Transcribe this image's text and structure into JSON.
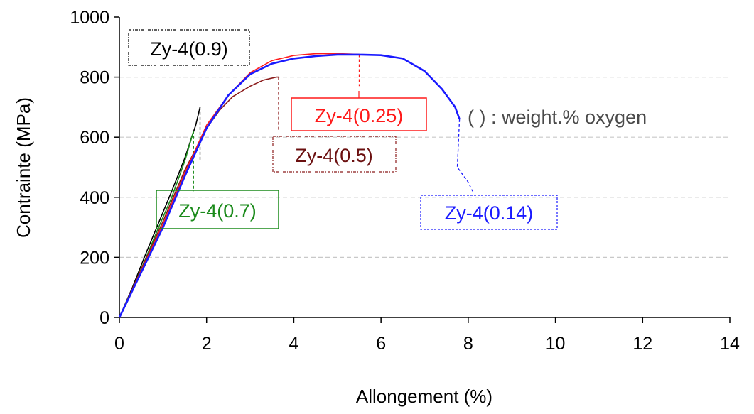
{
  "chart_data": {
    "type": "line",
    "title": "",
    "xlabel": "Allongement (%)",
    "ylabel": "Contrainte (MPa)",
    "xlim": [
      0,
      14
    ],
    "ylim": [
      0,
      1000
    ],
    "xticks": [
      "0",
      "2",
      "4",
      "6",
      "8",
      "10",
      "12",
      "14"
    ],
    "yticks": [
      "0",
      "200",
      "400",
      "600",
      "800",
      "1000"
    ],
    "grid": "horizontal dashed at 200, 400, 600, 800",
    "note": "( ) : weight.% oxygen",
    "series": [
      {
        "name": "Zy-4(0.9)",
        "color": "#000000",
        "points": [
          [
            0,
            0
          ],
          [
            0.3,
            100
          ],
          [
            0.6,
            210
          ],
          [
            0.9,
            315
          ],
          [
            1.2,
            420
          ],
          [
            1.5,
            530
          ],
          [
            1.75,
            640
          ],
          [
            1.85,
            700
          ]
        ],
        "fracture_drop": [
          [
            1.85,
            700
          ],
          [
            1.85,
            520
          ]
        ]
      },
      {
        "name": "Zy-4(0.7)",
        "color": "#1a8a1a",
        "points": [
          [
            0,
            0
          ],
          [
            0.3,
            95
          ],
          [
            0.6,
            195
          ],
          [
            0.9,
            300
          ],
          [
            1.2,
            400
          ],
          [
            1.5,
            520
          ],
          [
            1.7,
            620
          ]
        ],
        "fracture_drop": [
          [
            1.7,
            620
          ],
          [
            1.7,
            420
          ]
        ]
      },
      {
        "name": "Zy-4(0.5)",
        "color": "#8b1a1a",
        "points": [
          [
            0,
            0
          ],
          [
            0.5,
            160
          ],
          [
            1.0,
            320
          ],
          [
            1.5,
            490
          ],
          [
            2.0,
            630
          ],
          [
            2.3,
            690
          ],
          [
            2.6,
            735
          ],
          [
            3.0,
            770
          ],
          [
            3.3,
            790
          ],
          [
            3.6,
            800
          ],
          [
            3.65,
            800
          ]
        ],
        "fracture_drop": [
          [
            3.65,
            800
          ],
          [
            3.65,
            620
          ]
        ]
      },
      {
        "name": "Zy-4(0.25)",
        "color": "#ff1a1a",
        "points": [
          [
            0,
            0
          ],
          [
            0.5,
            155
          ],
          [
            1.0,
            310
          ],
          [
            1.5,
            480
          ],
          [
            2.0,
            640
          ],
          [
            2.5,
            740
          ],
          [
            3.0,
            815
          ],
          [
            3.5,
            855
          ],
          [
            4.0,
            872
          ],
          [
            4.5,
            878
          ],
          [
            5.0,
            878
          ],
          [
            5.5,
            876
          ]
        ],
        "fracture_drop": [
          [
            5.5,
            876
          ],
          [
            5.5,
            770
          ]
        ]
      },
      {
        "name": "Zy-4(0.14)",
        "color": "#1a1aff",
        "points": [
          [
            0,
            0
          ],
          [
            0.5,
            150
          ],
          [
            1.0,
            300
          ],
          [
            1.5,
            470
          ],
          [
            2.0,
            630
          ],
          [
            2.5,
            740
          ],
          [
            3.0,
            810
          ],
          [
            3.5,
            845
          ],
          [
            4.0,
            862
          ],
          [
            4.5,
            870
          ],
          [
            5.0,
            875
          ],
          [
            5.5,
            875
          ],
          [
            6.0,
            873
          ],
          [
            6.5,
            862
          ],
          [
            7.0,
            820
          ],
          [
            7.4,
            760
          ],
          [
            7.7,
            700
          ],
          [
            7.8,
            660
          ]
        ],
        "fracture_drop": [
          [
            7.8,
            660
          ],
          [
            7.75,
            500
          ],
          [
            8.0,
            450
          ],
          [
            8.1,
            420
          ]
        ]
      }
    ]
  }
}
